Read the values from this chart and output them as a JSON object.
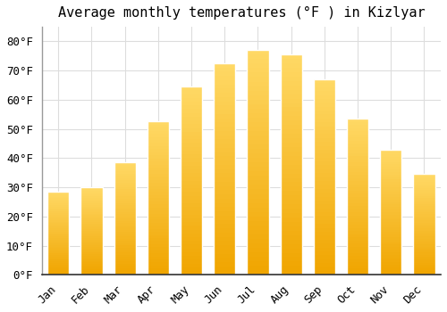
{
  "title": "Average monthly temperatures (°F ) in Kizlyar",
  "months": [
    "Jan",
    "Feb",
    "Mar",
    "Apr",
    "May",
    "Jun",
    "Jul",
    "Aug",
    "Sep",
    "Oct",
    "Nov",
    "Dec"
  ],
  "values": [
    28.5,
    30.0,
    38.5,
    52.5,
    64.5,
    72.5,
    77.0,
    75.5,
    67.0,
    53.5,
    43.0,
    34.5
  ],
  "bar_color_top": "#FFD966",
  "bar_color_bottom": "#F0A500",
  "bar_edge_color": "#CCCCCC",
  "ylim": [
    0,
    85
  ],
  "yticks": [
    0,
    10,
    20,
    30,
    40,
    50,
    60,
    70,
    80
  ],
  "background_color": "#FFFFFF",
  "grid_color": "#DDDDDD",
  "title_fontsize": 11,
  "tick_fontsize": 9,
  "font_family": "monospace"
}
